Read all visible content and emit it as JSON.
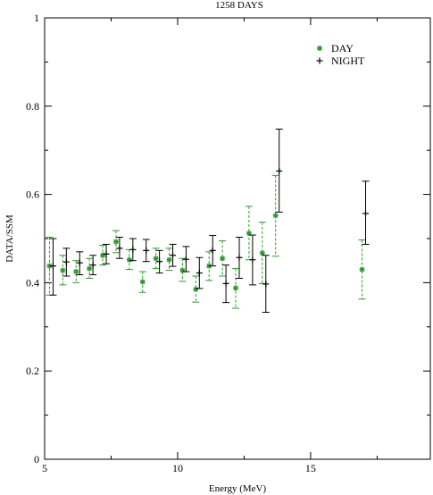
{
  "chart_data": {
    "type": "scatter",
    "title": "1258 DAYS",
    "xlabel": "Energy (MeV)",
    "ylabel": "DATA/SSM",
    "xlim": [
      5,
      19.5
    ],
    "ylim": [
      0,
      1
    ],
    "xticks": [
      5,
      10,
      15
    ],
    "yticks": [
      0,
      0.2,
      0.4,
      0.6,
      0.8,
      1
    ],
    "x_tick_labels": [
      "5",
      "10",
      "15"
    ],
    "y_tick_labels": [
      "0",
      "0.2",
      "0.4",
      "0.6",
      "0.8",
      "1"
    ],
    "legend": {
      "position": "top-right",
      "entries": [
        {
          "label": "DAY",
          "marker": "asterisk",
          "color": "#2e9a2e"
        },
        {
          "label": "NIGHT",
          "marker": "plus",
          "color": "#000000"
        }
      ]
    },
    "series": [
      {
        "name": "DAY",
        "color": "#2e9a2e",
        "marker": "asterisk",
        "errorbar_style": "dashed",
        "points": [
          {
            "x": 5.25,
            "y": 0.438,
            "lo": 0.372,
            "hi": 0.503
          },
          {
            "x": 5.75,
            "y": 0.428,
            "lo": 0.395,
            "hi": 0.462
          },
          {
            "x": 6.25,
            "y": 0.425,
            "lo": 0.4,
            "hi": 0.45
          },
          {
            "x": 6.75,
            "y": 0.432,
            "lo": 0.41,
            "hi": 0.455
          },
          {
            "x": 7.25,
            "y": 0.462,
            "lo": 0.44,
            "hi": 0.485
          },
          {
            "x": 7.75,
            "y": 0.493,
            "lo": 0.468,
            "hi": 0.518
          },
          {
            "x": 8.25,
            "y": 0.452,
            "lo": 0.43,
            "hi": 0.475
          },
          {
            "x": 8.75,
            "y": 0.402,
            "lo": 0.378,
            "hi": 0.425
          },
          {
            "x": 9.25,
            "y": 0.455,
            "lo": 0.432,
            "hi": 0.478
          },
          {
            "x": 9.75,
            "y": 0.452,
            "lo": 0.428,
            "hi": 0.478
          },
          {
            "x": 10.25,
            "y": 0.428,
            "lo": 0.403,
            "hi": 0.455
          },
          {
            "x": 10.75,
            "y": 0.385,
            "lo": 0.356,
            "hi": 0.415
          },
          {
            "x": 11.25,
            "y": 0.438,
            "lo": 0.405,
            "hi": 0.47
          },
          {
            "x": 11.75,
            "y": 0.455,
            "lo": 0.415,
            "hi": 0.495
          },
          {
            "x": 12.25,
            "y": 0.388,
            "lo": 0.342,
            "hi": 0.432
          },
          {
            "x": 12.75,
            "y": 0.512,
            "lo": 0.452,
            "hi": 0.573
          },
          {
            "x": 13.25,
            "y": 0.467,
            "lo": 0.398,
            "hi": 0.537
          },
          {
            "x": 13.75,
            "y": 0.552,
            "lo": 0.46,
            "hi": 0.643
          },
          {
            "x": 17.0,
            "y": 0.43,
            "lo": 0.363,
            "hi": 0.497
          }
        ]
      },
      {
        "name": "NIGHT",
        "color": "#000000",
        "marker": "plus",
        "errorbar_style": "solid",
        "points": [
          {
            "x": 5.25,
            "y": 0.438,
            "lo": 0.372,
            "hi": 0.5
          },
          {
            "x": 5.75,
            "y": 0.447,
            "lo": 0.415,
            "hi": 0.478
          },
          {
            "x": 6.25,
            "y": 0.445,
            "lo": 0.418,
            "hi": 0.47
          },
          {
            "x": 6.75,
            "y": 0.44,
            "lo": 0.418,
            "hi": 0.462
          },
          {
            "x": 7.25,
            "y": 0.465,
            "lo": 0.443,
            "hi": 0.487
          },
          {
            "x": 7.75,
            "y": 0.478,
            "lo": 0.455,
            "hi": 0.503
          },
          {
            "x": 8.25,
            "y": 0.475,
            "lo": 0.45,
            "hi": 0.5
          },
          {
            "x": 8.75,
            "y": 0.473,
            "lo": 0.448,
            "hi": 0.498
          },
          {
            "x": 9.25,
            "y": 0.448,
            "lo": 0.422,
            "hi": 0.473
          },
          {
            "x": 9.75,
            "y": 0.462,
            "lo": 0.437,
            "hi": 0.487
          },
          {
            "x": 10.25,
            "y": 0.453,
            "lo": 0.425,
            "hi": 0.482
          },
          {
            "x": 10.75,
            "y": 0.422,
            "lo": 0.387,
            "hi": 0.457
          },
          {
            "x": 11.25,
            "y": 0.473,
            "lo": 0.438,
            "hi": 0.507
          },
          {
            "x": 11.75,
            "y": 0.398,
            "lo": 0.355,
            "hi": 0.44
          },
          {
            "x": 12.25,
            "y": 0.457,
            "lo": 0.41,
            "hi": 0.503
          },
          {
            "x": 12.75,
            "y": 0.452,
            "lo": 0.395,
            "hi": 0.508
          },
          {
            "x": 13.25,
            "y": 0.397,
            "lo": 0.333,
            "hi": 0.462
          },
          {
            "x": 13.75,
            "y": 0.653,
            "lo": 0.56,
            "hi": 0.748
          },
          {
            "x": 17.0,
            "y": 0.557,
            "lo": 0.487,
            "hi": 0.63
          }
        ]
      }
    ]
  }
}
